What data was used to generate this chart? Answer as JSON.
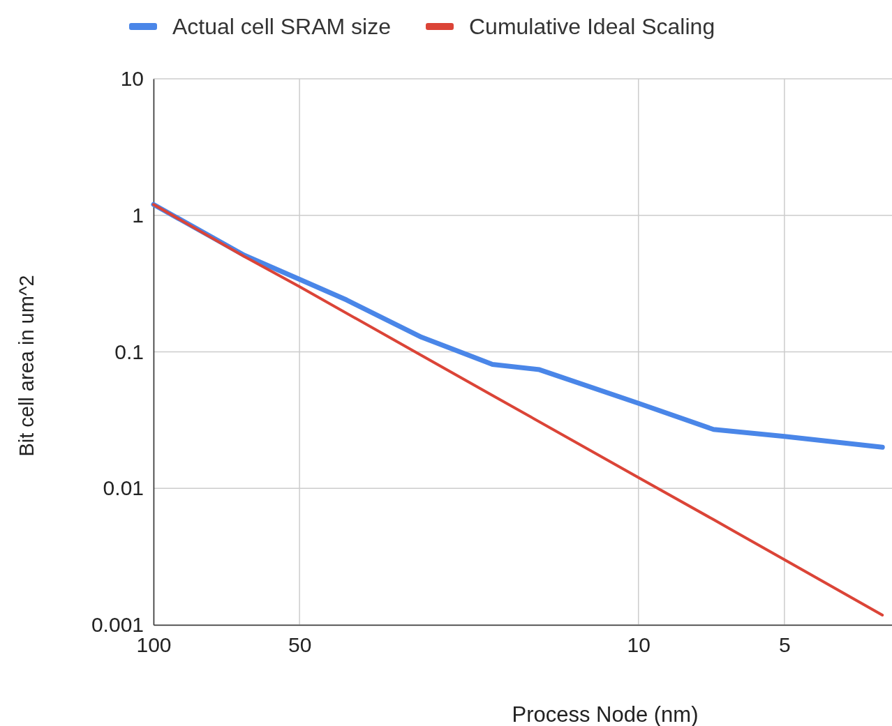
{
  "chart_data": {
    "type": "line",
    "xlabel": "Process Node (nm)",
    "ylabel": "Bit cell area in um^2",
    "log": "xy",
    "grid": true,
    "legend": "top",
    "marker": "none",
    "line_style": "solid",
    "xlim": [
      100,
      3
    ],
    "xticks": [
      100,
      50,
      10,
      5
    ],
    "ylim": [
      0.001,
      10
    ],
    "yticks": [
      0.001,
      0.01,
      0.1,
      1,
      10
    ],
    "series": [
      {
        "name": "Actual cell SRAM size",
        "color": "#4a86e8",
        "x": [
          100,
          65,
          50,
          40,
          28,
          20,
          16,
          10,
          7,
          5,
          3.14
        ],
        "values": [
          1.2,
          0.51,
          0.34,
          0.24,
          0.128,
          0.081,
          0.074,
          0.042,
          0.027,
          0.024,
          0.02
        ]
      },
      {
        "name": "Cumulative Ideal Scaling",
        "color": "#db4437",
        "x": [
          100,
          65,
          50,
          28,
          20,
          10,
          7,
          5,
          3.14
        ],
        "values": [
          1.2,
          0.5,
          0.3,
          0.094,
          0.048,
          0.012,
          0.0059,
          0.003,
          0.00118
        ]
      }
    ]
  }
}
